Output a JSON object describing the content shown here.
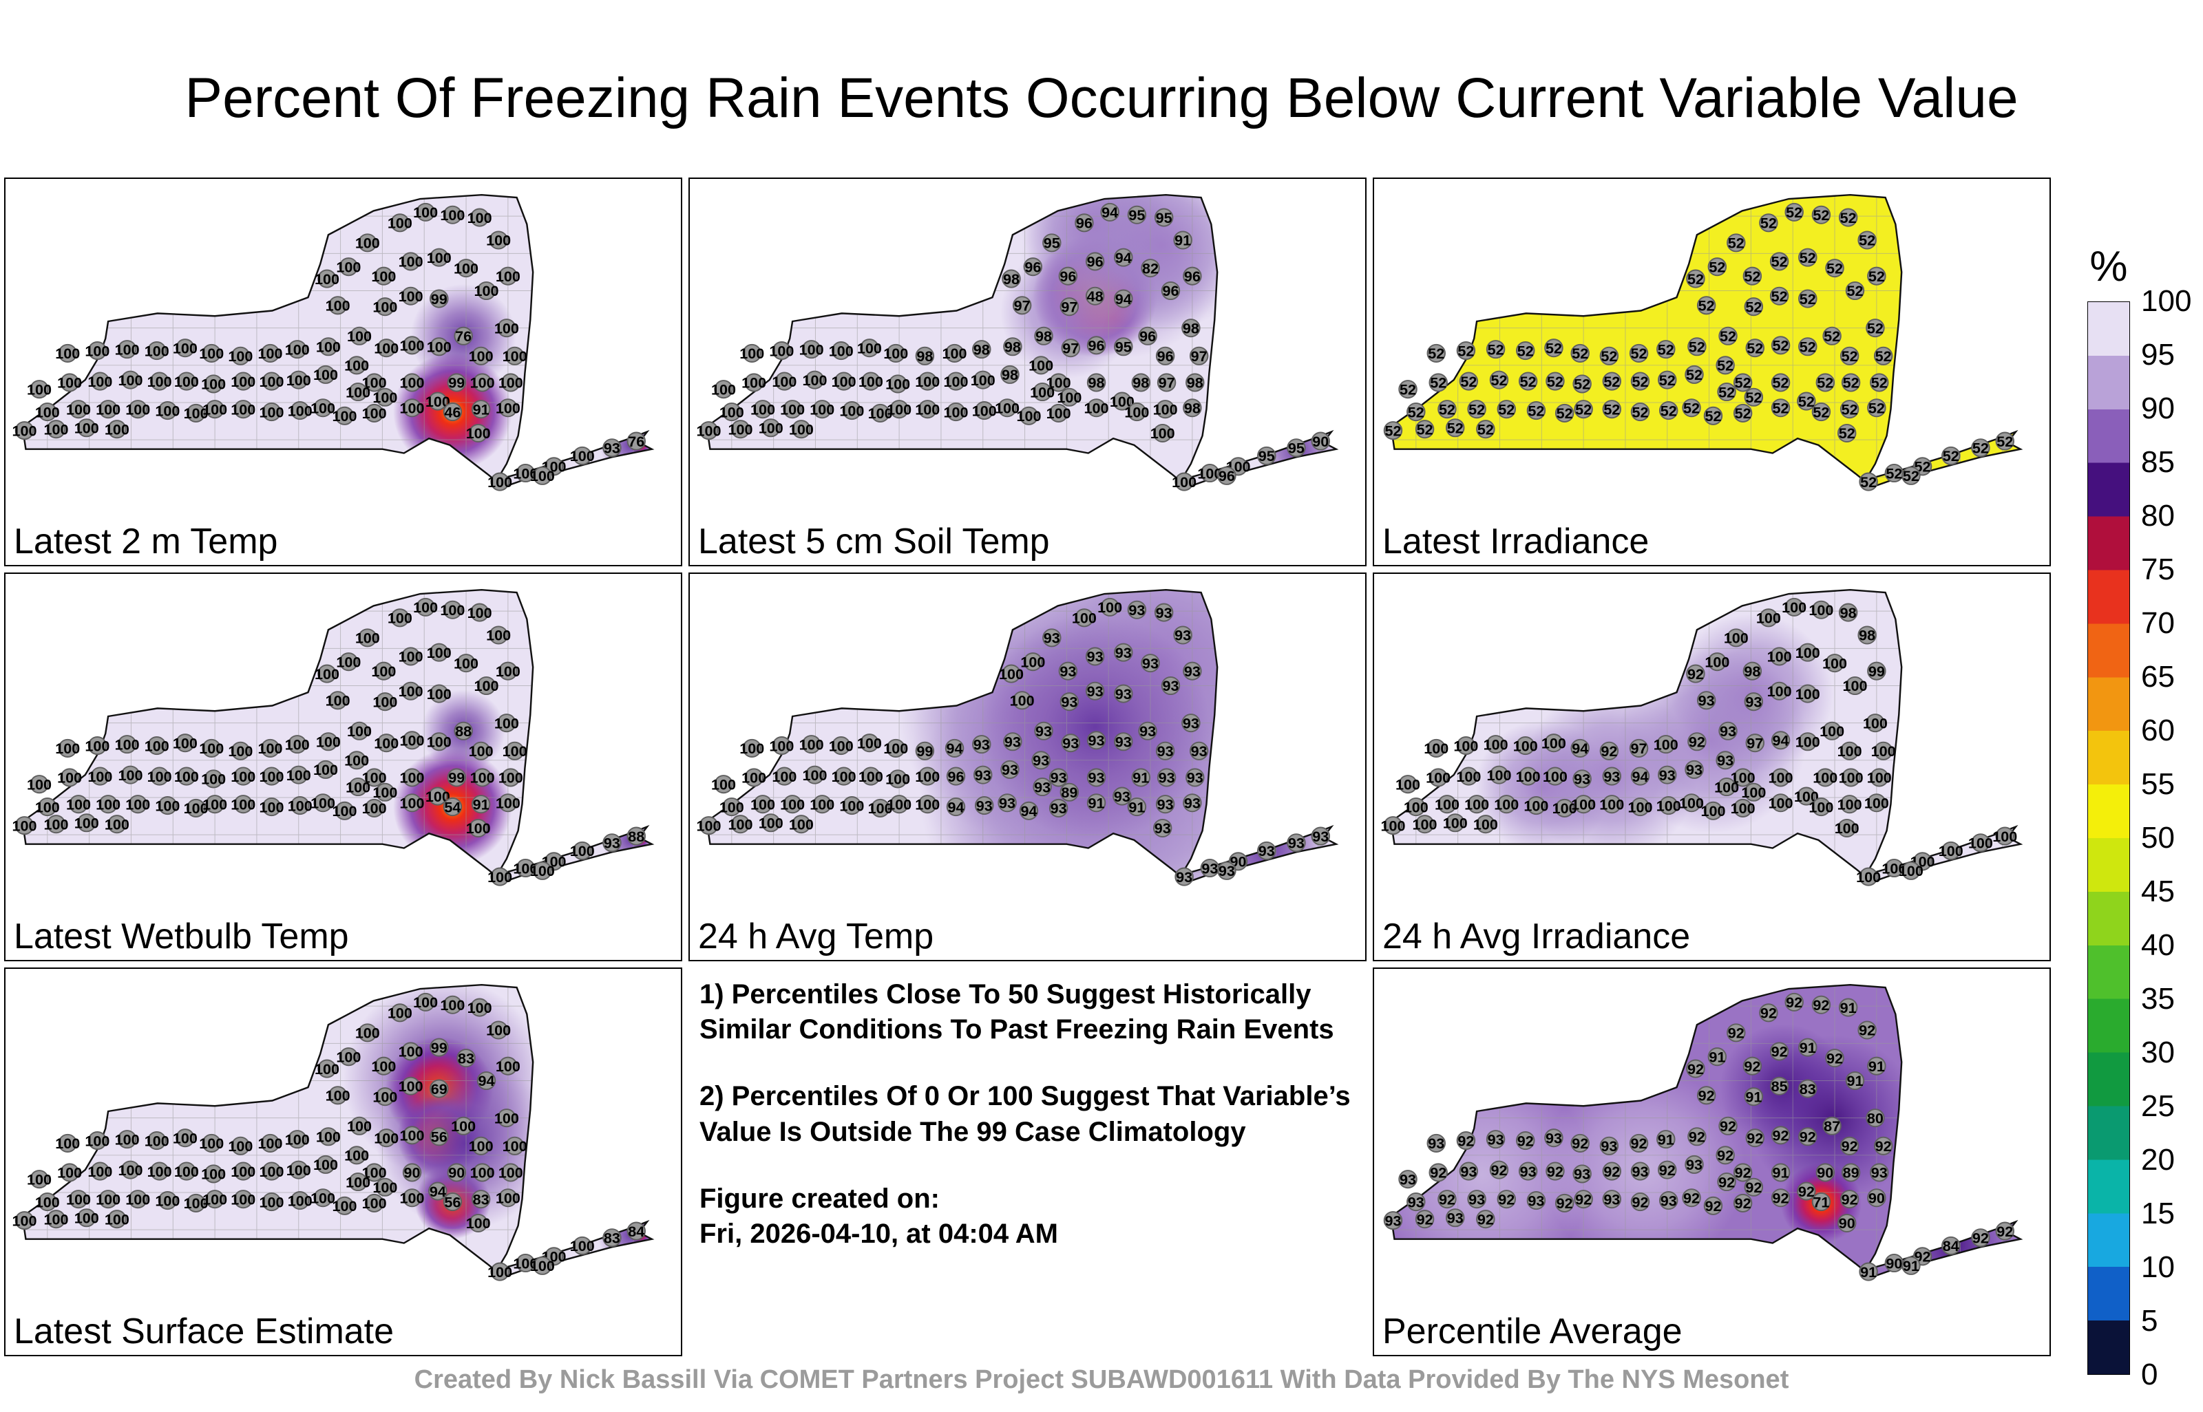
{
  "title": "Percent Of Freezing Rain Events Occurring Below Current Variable Value",
  "notes": {
    "note1": "1) Percentiles Close To 50 Suggest Historically Similar Conditions To Past Freezing Rain Events",
    "note2": "2) Percentiles Of 0 Or 100 Suggest That Variable’s Value Is Outside The 99 Case Climatology",
    "created_label": "Figure created on:",
    "created_date": "Fri, 2026-04-10, at 04:04 AM"
  },
  "credit": "Created By Nick Bassill Via COMET Partners Project SUBAWD001611 With Data Provided By The NYS Mesonet",
  "palette": {
    "county_line": "#9a9a9a",
    "state_border": "#111111",
    "station_fill": "#9a9a9a",
    "station_stroke": "#5f5f5f",
    "gradients": {
      "purple": [
        [
          0,
          "#6637a3",
          0.95
        ],
        [
          45,
          "#8257b2",
          0.7
        ],
        [
          100,
          "#8257b2",
          0
        ]
      ],
      "soft": [
        [
          0,
          "#9f7cc7",
          0.9
        ],
        [
          55,
          "#a285c9",
          0.6
        ],
        [
          100,
          "#a285c9",
          0
        ]
      ],
      "deep": [
        [
          0,
          "#45127f",
          0.92
        ],
        [
          50,
          "#5d2b9b",
          0.6
        ],
        [
          100,
          "#5d2b9b",
          0
        ]
      ],
      "lite": [
        [
          0,
          "#cdbce3",
          0.85
        ],
        [
          60,
          "#cdbce3",
          0.45
        ],
        [
          100,
          "#cdbce3",
          0
        ]
      ],
      "red": [
        [
          0,
          "#ff9000",
          1
        ],
        [
          22,
          "#ee2e16",
          1
        ],
        [
          45,
          "#c2185a",
          0.95
        ],
        [
          70,
          "#7a2ba6",
          0.8
        ],
        [
          100,
          "#7a2ba6",
          0
        ]
      ]
    }
  },
  "chart_data": {
    "type": "heatmap",
    "title": "Percent Of Freezing Rain Events Occurring Below Current Variable Value",
    "legend_position": "right",
    "colorbar": {
      "unit": "%",
      "ticks": [
        100,
        95,
        90,
        85,
        80,
        75,
        70,
        65,
        60,
        55,
        50,
        45,
        40,
        35,
        30,
        25,
        20,
        15,
        10,
        5,
        0
      ],
      "colors": [
        "#e7e0f3",
        "#b9a2d8",
        "#8a5fba",
        "#45107e",
        "#b00f3c",
        "#e8321e",
        "#f06414",
        "#f29611",
        "#f3c40d",
        "#f4ef0a",
        "#cfe70e",
        "#8fd41c",
        "#4fc02c",
        "#2aab2e",
        "#119a40",
        "#0a9a70",
        "#0ab4a8",
        "#18a8e0",
        "#1060c8",
        "#0a1238"
      ]
    },
    "stations": [
      [
        92,
        262
      ],
      [
        136,
        258
      ],
      [
        180,
        256
      ],
      [
        224,
        258
      ],
      [
        266,
        254
      ],
      [
        305,
        262
      ],
      [
        50,
        316
      ],
      [
        95,
        306
      ],
      [
        140,
        304
      ],
      [
        185,
        302
      ],
      [
        228,
        304
      ],
      [
        268,
        304
      ],
      [
        62,
        350
      ],
      [
        108,
        346
      ],
      [
        152,
        346
      ],
      [
        196,
        346
      ],
      [
        240,
        348
      ],
      [
        282,
        352
      ],
      [
        28,
        378
      ],
      [
        75,
        376
      ],
      [
        120,
        374
      ],
      [
        165,
        376
      ],
      [
        308,
        308
      ],
      [
        310,
        346
      ],
      [
        348,
        266
      ],
      [
        352,
        304
      ],
      [
        352,
        346
      ],
      [
        392,
        262
      ],
      [
        394,
        304
      ],
      [
        394,
        350
      ],
      [
        432,
        256
      ],
      [
        434,
        302
      ],
      [
        436,
        348
      ],
      [
        470,
        344
      ],
      [
        474,
        294
      ],
      [
        478,
        252
      ],
      [
        476,
        150
      ],
      [
        492,
        190
      ],
      [
        508,
        132
      ],
      [
        536,
        96
      ],
      [
        560,
        146
      ],
      [
        584,
        66
      ],
      [
        622,
        50
      ],
      [
        662,
        54
      ],
      [
        702,
        58
      ],
      [
        730,
        92
      ],
      [
        744,
        146
      ],
      [
        600,
        124
      ],
      [
        642,
        118
      ],
      [
        682,
        134
      ],
      [
        712,
        168
      ],
      [
        600,
        176
      ],
      [
        642,
        180
      ],
      [
        562,
        192
      ],
      [
        524,
        236
      ],
      [
        742,
        224
      ],
      [
        754,
        266
      ],
      [
        748,
        306
      ],
      [
        744,
        344
      ],
      [
        704,
        266
      ],
      [
        706,
        306
      ],
      [
        668,
        306
      ],
      [
        520,
        280
      ],
      [
        546,
        306
      ],
      [
        522,
        320
      ],
      [
        562,
        328
      ],
      [
        602,
        306
      ],
      [
        640,
        334
      ],
      [
        602,
        344
      ],
      [
        546,
        352
      ],
      [
        502,
        356
      ],
      [
        662,
        350
      ],
      [
        704,
        346
      ],
      [
        564,
        254
      ],
      [
        602,
        250
      ],
      [
        642,
        252
      ],
      [
        678,
        236
      ],
      [
        700,
        382
      ],
      [
        732,
        455
      ],
      [
        770,
        442
      ],
      [
        812,
        432
      ],
      [
        854,
        416
      ],
      [
        898,
        404
      ],
      [
        934,
        394
      ],
      [
        795,
        446
      ]
    ],
    "panels": [
      {
        "label": "Latest 2 m Temp",
        "base": "#e9e2f4",
        "default": 100,
        "overrides": {
          "52": 99,
          "61": 99,
          "71": 46,
          "72": 91,
          "76": 76,
          "82": 93,
          "83": 76
        },
        "blobs": [
          [
            678,
            236,
            78,
            "purple"
          ],
          [
            662,
            350,
            88,
            "red"
          ],
          [
            925,
            400,
            45,
            "purple"
          ],
          [
            940,
            398,
            16,
            "red"
          ]
        ]
      },
      {
        "label": "Latest 5 cm Soil Temp",
        "base": "#e9e2f4",
        "default": 100,
        "overrides": {
          "24": 98,
          "30": 98,
          "34": 98,
          "35": 98,
          "36": 98,
          "37": 97,
          "38": 96,
          "39": 95,
          "40": 96,
          "41": 96,
          "42": 94,
          "43": 95,
          "44": 95,
          "45": 91,
          "46": 96,
          "47": 96,
          "48": 94,
          "49": 82,
          "50": 96,
          "51": 48,
          "52": 94,
          "53": 97,
          "54": 98,
          "55": 98,
          "56": 97,
          "57": 98,
          "58": 98,
          "59": 96,
          "60": 97,
          "61": 98,
          "66": 98,
          "73": 97,
          "74": 96,
          "75": 95,
          "76": 96,
          "81": 95,
          "82": 95,
          "83": 90,
          "84": 96
        },
        "blobs": [
          [
            600,
            176,
            92,
            "red"
          ],
          [
            640,
            120,
            150,
            "soft"
          ],
          [
            600,
            70,
            110,
            "soft"
          ],
          [
            700,
            100,
            130,
            "soft"
          ],
          [
            560,
            200,
            100,
            "soft"
          ],
          [
            900,
            408,
            60,
            "purple"
          ]
        ]
      },
      {
        "label": "Latest Irradiance",
        "base": "#f3ef21",
        "default": 52,
        "overrides": {},
        "blobs": []
      },
      {
        "label": "Latest Wetbulb Temp",
        "base": "#e9e2f4",
        "default": 100,
        "overrides": {
          "61": 99,
          "71": 54,
          "72": 91,
          "76": 88,
          "82": 93,
          "83": 88
        },
        "blobs": [
          [
            678,
            236,
            62,
            "purple"
          ],
          [
            662,
            350,
            88,
            "red"
          ],
          [
            925,
            400,
            42,
            "purple"
          ],
          [
            940,
            398,
            14,
            "red"
          ]
        ]
      },
      {
        "label": "24 h Avg Temp",
        "base": "#e9e2f4",
        "default": 100,
        "overrides": {
          "24": 99,
          "27": 94,
          "28": 96,
          "29": 94,
          "30": 93,
          "31": 93,
          "32": 93,
          "33": 93,
          "34": 93,
          "35": 93,
          "39": 93,
          "40": 93,
          "43": 93,
          "44": 93,
          "45": 93,
          "46": 93,
          "47": 93,
          "48": 93,
          "49": 93,
          "50": 93,
          "51": 93,
          "52": 93,
          "53": 93,
          "54": 93,
          "55": 93,
          "56": 93,
          "57": 93,
          "58": 93,
          "59": 93,
          "60": 93,
          "61": 91,
          "62": 93,
          "63": 93,
          "64": 93,
          "65": 89,
          "66": 93,
          "67": 93,
          "68": 91,
          "69": 93,
          "70": 94,
          "71": 91,
          "72": 93,
          "73": 93,
          "74": 93,
          "75": 93,
          "76": 93,
          "77": 93,
          "78": 93,
          "79": 93,
          "80": 90,
          "81": 93,
          "82": 93,
          "83": 93,
          "84": 93
        },
        "blobs": [
          [
            660,
            250,
            330,
            "soft"
          ],
          [
            580,
            330,
            240,
            "soft"
          ],
          [
            700,
            130,
            220,
            "soft"
          ],
          [
            500,
            210,
            190,
            "soft"
          ],
          [
            600,
            230,
            170,
            "purple"
          ],
          [
            855,
            415,
            95,
            "purple"
          ]
        ]
      },
      {
        "label": "24 h Avg Irradiance",
        "base": "#e9e2f4",
        "default": 100,
        "overrides": {
          "5": 94,
          "22": 93,
          "24": 92,
          "25": 93,
          "27": 97,
          "28": 94,
          "31": 93,
          "34": 93,
          "35": 92,
          "36": 92,
          "37": 93,
          "40": 98,
          "44": 98,
          "45": 98,
          "46": 99,
          "53": 93,
          "54": 93,
          "62": 93,
          "73": 97,
          "74": 94
        },
        "blobs": [
          [
            350,
            300,
            130,
            "soft"
          ],
          [
            500,
            250,
            140,
            "soft"
          ],
          [
            250,
            320,
            100,
            "soft"
          ],
          [
            560,
            180,
            120,
            "soft"
          ]
        ]
      },
      {
        "label": "Latest Surface Estimate",
        "base": "#e9e2f4",
        "default": 100,
        "overrides": {
          "48": 99,
          "49": 83,
          "50": 94,
          "52": 69,
          "61": 90,
          "66": 90,
          "67": 94,
          "71": 56,
          "72": 83,
          "75": 56,
          "82": 83,
          "83": 84
        },
        "blobs": [
          [
            650,
            165,
            150,
            "purple"
          ],
          [
            642,
            182,
            80,
            "red"
          ],
          [
            642,
            252,
            62,
            "red"
          ],
          [
            662,
            350,
            56,
            "red"
          ],
          [
            680,
            262,
            130,
            "purple"
          ],
          [
            925,
            400,
            48,
            "purple"
          ],
          [
            940,
            398,
            16,
            "red"
          ]
        ]
      },
      {
        "label": "Percentile Average",
        "base": "#9a73c4",
        "default": 92,
        "overrides": {
          "0": 93,
          "2": 93,
          "4": 93,
          "6": 93,
          "8": 93,
          "10": 93,
          "12": 93,
          "14": 93,
          "16": 93,
          "18": 93,
          "20": 93,
          "22": 93,
          "24": 93,
          "26": 93,
          "28": 93,
          "30": 91,
          "32": 93,
          "34": 93,
          "36": 92,
          "38": 91,
          "40": 92,
          "42": 92,
          "44": 91,
          "46": 91,
          "48": 91,
          "50": 91,
          "51": 85,
          "52": 83,
          "53": 91,
          "55": 80,
          "57": 93,
          "58": 90,
          "60": 89,
          "61": 90,
          "66": 91,
          "71": 71,
          "76": 87,
          "77": 90,
          "78": 91,
          "79": 90,
          "81": 84,
          "84": 91
        },
        "blobs": [
          [
            607,
            178,
            95,
            "deep"
          ],
          [
            680,
            225,
            125,
            "deep"
          ],
          [
            662,
            352,
            60,
            "red"
          ],
          [
            858,
            415,
            80,
            "deep"
          ],
          [
            160,
            310,
            160,
            "lite"
          ],
          [
            400,
            300,
            150,
            "lite"
          ]
        ]
      }
    ]
  }
}
